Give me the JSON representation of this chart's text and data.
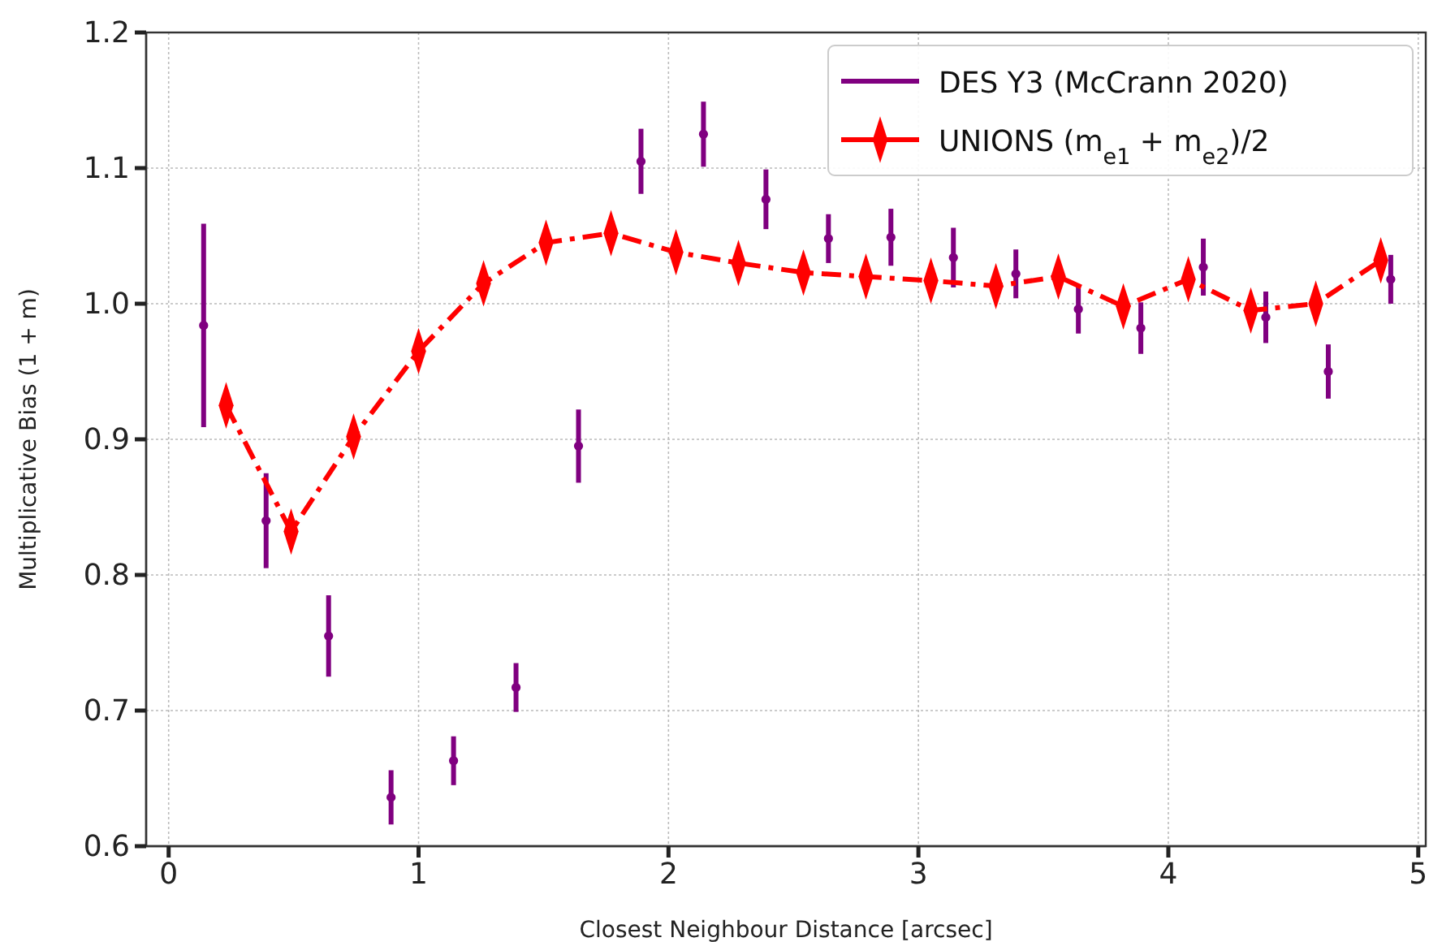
{
  "chart_data": {
    "type": "line",
    "xlabel": "Closest Neighbour Distance [arcsec]",
    "ylabel": "Multiplicative Bias (1 + m)",
    "xlim": [
      -0.09,
      5.03
    ],
    "xticks": [
      0,
      1,
      2,
      3,
      4,
      5
    ],
    "ylim": [
      0.6,
      1.2
    ],
    "yticks": [
      0.6,
      0.7,
      0.8,
      0.9,
      {
        "value": 1,
        "label": "1.0"
      },
      1.1,
      1.2
    ],
    "grid": true,
    "legend": "top right",
    "series": [
      {
        "name": "DES Y3 (McCrann 2020)",
        "type": "scatter",
        "marker": "circle",
        "color": "#800080",
        "x": [
          0.14,
          0.39,
          0.64,
          0.89,
          1.14,
          1.39,
          1.64,
          1.89,
          2.14,
          2.39,
          2.64,
          2.89,
          3.14,
          3.39,
          3.64,
          3.89,
          4.14,
          4.39,
          4.64,
          4.89
        ],
        "values": [
          0.984,
          0.84,
          0.755,
          0.636,
          0.663,
          0.717,
          0.895,
          1.105,
          1.125,
          1.077,
          1.048,
          1.049,
          1.034,
          1.022,
          0.996,
          0.982,
          1.027,
          0.99,
          0.95,
          1.018
        ],
        "errors": [
          0.075,
          0.035,
          0.03,
          0.02,
          0.018,
          0.018,
          0.027,
          0.024,
          0.024,
          0.022,
          0.018,
          0.021,
          0.022,
          0.018,
          0.018,
          0.019,
          0.021,
          0.019,
          0.02,
          0.018
        ]
      },
      {
        "name": "UNIONS (m$_{e1}$ + m$_{e2}$)/2",
        "marker": "diamond",
        "line_style": "dashdot",
        "color": "#ff0000",
        "x": [
          0.23,
          0.49,
          0.74,
          1.0,
          1.26,
          1.51,
          1.77,
          2.03,
          2.28,
          2.54,
          2.79,
          3.05,
          3.31,
          3.56,
          3.82,
          4.08,
          4.33,
          4.59,
          4.85
        ],
        "values": [
          0.925,
          0.832,
          0.902,
          0.965,
          1.015,
          1.045,
          1.052,
          1.038,
          1.03,
          1.023,
          1.02,
          1.017,
          1.013,
          1.02,
          0.998,
          1.018,
          0.995,
          1.0,
          1.032
        ],
        "errors": [
          0.01,
          0.01,
          0.01,
          0.01,
          0.01,
          0.01,
          0.01,
          0.01,
          0.01,
          0.01,
          0.01,
          0.01,
          0.01,
          0.01,
          0.01,
          0.01,
          0.01,
          0.01,
          0.01
        ]
      }
    ]
  }
}
